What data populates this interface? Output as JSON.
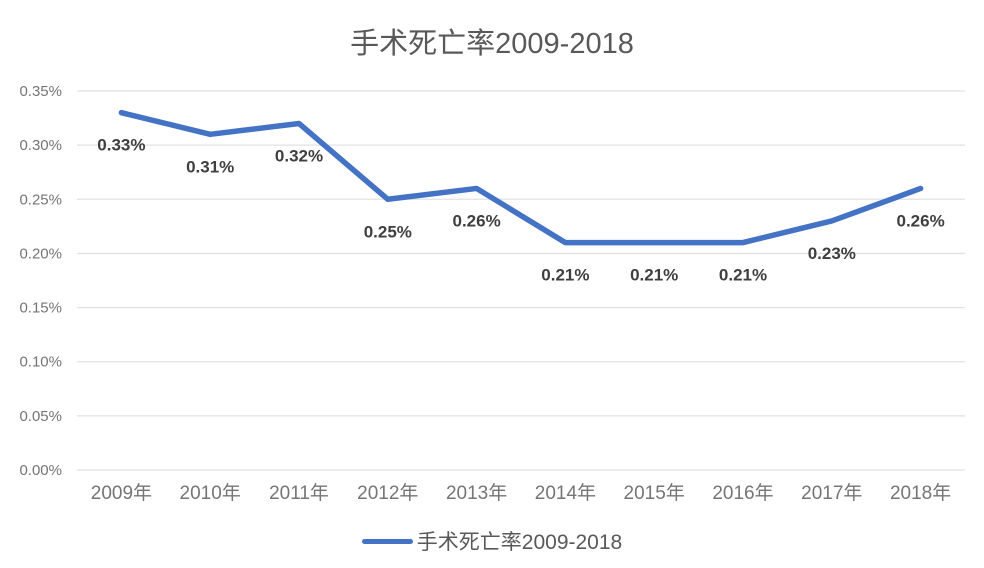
{
  "chart_data": {
    "type": "line",
    "title": "手术死亡率2009-2018",
    "categories": [
      "2009年",
      "2010年",
      "2011年",
      "2012年",
      "2013年",
      "2014年",
      "2015年",
      "2016年",
      "2017年",
      "2018年"
    ],
    "series": [
      {
        "name": "手术死亡率2009-2018",
        "values": [
          0.33,
          0.31,
          0.32,
          0.25,
          0.26,
          0.21,
          0.21,
          0.21,
          0.23,
          0.26
        ]
      }
    ],
    "data_labels": [
      "0.33%",
      "0.31%",
      "0.32%",
      "0.25%",
      "0.26%",
      "0.21%",
      "0.21%",
      "0.21%",
      "0.23%",
      "0.26%"
    ],
    "y_ticks": [
      "0.35%",
      "0.30%",
      "0.25%",
      "0.20%",
      "0.15%",
      "0.10%",
      "0.05%",
      "0.00%"
    ],
    "ylim": [
      0,
      0.35
    ],
    "y_tick_step": 0.05,
    "xlabel": "",
    "ylabel": "",
    "grid": true,
    "legend_position": "bottom",
    "colors": {
      "line": "#4472C4",
      "gridline": "#E2E2E2",
      "title": "#595959",
      "axis_label": "#757575",
      "data_label": "#3F3F3F",
      "legend_label": "#595959"
    }
  },
  "legend": {
    "label": "手术死亡率2009-2018"
  }
}
